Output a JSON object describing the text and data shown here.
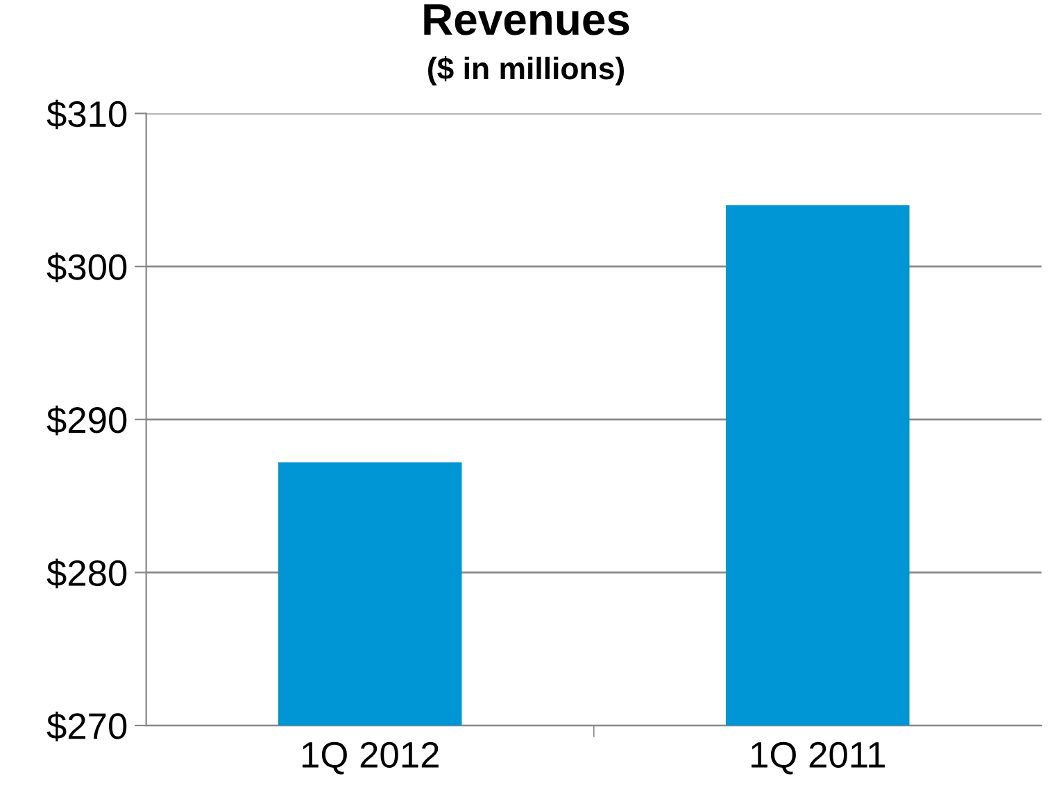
{
  "chart_data": {
    "type": "bar",
    "title": "Revenues",
    "subtitle": "($ in millions)",
    "categories": [
      "1Q 2012",
      "1Q 2011"
    ],
    "values": [
      287.2,
      304.0
    ],
    "color": "#0096d6",
    "ylim": [
      270,
      310
    ],
    "yticks": [
      {
        "value": 270,
        "label": "$270"
      },
      {
        "value": 280,
        "label": "$280"
      },
      {
        "value": 290,
        "label": "$290"
      },
      {
        "value": 300,
        "label": "$300"
      },
      {
        "value": 310,
        "label": "$310"
      }
    ],
    "grid": "y",
    "legend": false
  }
}
